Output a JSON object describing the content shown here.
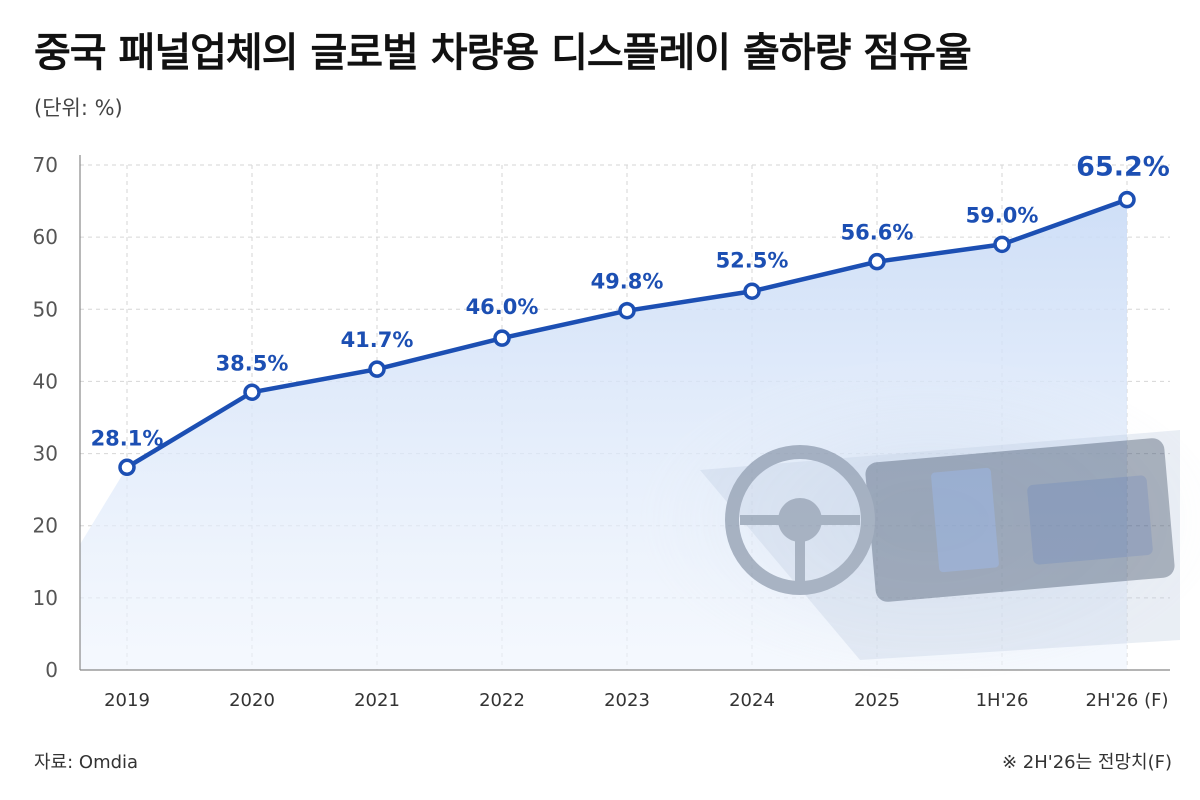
{
  "title": "중국 패널업체의 글로벌 차량용 디스플레이 출하량 점유율",
  "unit_label": "(단위: %)",
  "source": "자료: Omdia",
  "note": "※ 2H'26는 전망치(F)",
  "colors": {
    "line": "#1c4fb3",
    "label": "#1c4fb3",
    "area_top": "#c9dbf6",
    "area_bottom": "#eef4fd",
    "grid": "#d6d6d6",
    "axis_text": "#555555"
  },
  "chart_data": {
    "type": "line",
    "title": "중국 패널업체의 글로벌 차량용 디스플레이 출하량 점유율",
    "ylabel": "(단위: %)",
    "xlabel": "",
    "categories": [
      "2019",
      "2020",
      "2021",
      "2022",
      "2023",
      "2024",
      "2025",
      "1H'26",
      "2H'26 (F)"
    ],
    "values": [
      28.1,
      38.5,
      41.7,
      46.0,
      49.8,
      52.5,
      56.6,
      59.0,
      65.2
    ],
    "data_labels": [
      "28.1%",
      "38.5%",
      "41.7%",
      "46.0%",
      "49.8%",
      "52.5%",
      "56.6%",
      "59.0%",
      "65.2%"
    ],
    "ylim": [
      0,
      70
    ],
    "yticks": [
      0,
      10,
      20,
      30,
      40,
      50,
      60,
      70
    ],
    "grid": true,
    "area_fill": true,
    "markers": "hollow-circle",
    "legend": "none"
  }
}
